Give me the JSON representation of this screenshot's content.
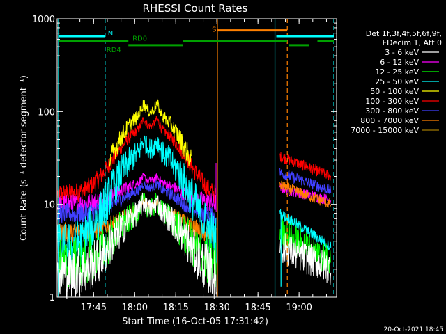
{
  "chart_data": {
    "type": "line",
    "title": "RHESSI Count Rates",
    "xlabel": "Start Time (16-Oct-05 17:31:42)",
    "ylabel": "Count Rate (s⁻¹ detector segment⁻¹)",
    "yscale": "log",
    "ylim": [
      1,
      1000
    ],
    "xlim_minutes": [
      0,
      102
    ],
    "y_ticks": [
      "1",
      "10",
      "100",
      "1000"
    ],
    "x_ticks": [
      {
        "label": "17:45",
        "t": 13.3
      },
      {
        "label": "18:00",
        "t": 28.3
      },
      {
        "label": "18:15",
        "t": 43.3
      },
      {
        "label": "18:30",
        "t": 58.3
      },
      {
        "label": "18:45",
        "t": 73.3
      },
      {
        "label": "19:00",
        "t": 88.3
      }
    ],
    "legend_header": [
      "Det 1f,3f,4f,5f,6f,9f,",
      "FDecim 1, Att 0"
    ],
    "series": [
      {
        "name": "3 - 6 keV",
        "color": "#ffffff",
        "pre": 1.8,
        "peak": 9,
        "pre_end": 1.5,
        "post_start": 3.5,
        "post_end": 2.0
      },
      {
        "name": "6 - 12 keV",
        "color": "#ff00ff",
        "pre": 10,
        "peak": 18,
        "pre_end": 10,
        "post_start": 15,
        "post_end": 11
      },
      {
        "name": "12 - 25 keV",
        "color": "#00ff00",
        "pre": 2.3,
        "peak": 9,
        "pre_end": 2.0,
        "post_start": 5,
        "post_end": 2.5
      },
      {
        "name": "25 - 50 keV",
        "color": "#00ffff",
        "pre": 3.3,
        "peak": 40,
        "pre_end": 3.0,
        "post_start": 8,
        "post_end": 3.5
      },
      {
        "name": "50 - 100 keV",
        "color": "#ffff00",
        "pre": 0,
        "peak": 100,
        "pre_end": 0,
        "post_start": 0,
        "post_end": 0
      },
      {
        "name": "100 - 300 keV",
        "color": "#ff0000",
        "pre": 13,
        "peak": 70,
        "pre_end": 11,
        "post_start": 33,
        "post_end": 20
      },
      {
        "name": "300 - 800 keV",
        "color": "#4040ff",
        "pre": 8,
        "peak": 15,
        "pre_end": 7,
        "post_start": 22,
        "post_end": 14
      },
      {
        "name": "800 - 7000 keV",
        "color": "#ff8000",
        "pre": 5,
        "peak": 9.5,
        "pre_end": 4.5,
        "post_start": 16,
        "post_end": 10
      },
      {
        "name": "7000 - 15000 keV",
        "color": "#a07800",
        "pre": 0,
        "peak": 0,
        "pre_end": 0,
        "post_start": 0,
        "post_end": 0
      }
    ],
    "peak_time_minutes": 34,
    "data_gap_minutes": [
      58.5,
      81
    ],
    "annotations": [
      {
        "label": "N",
        "color": "#00ffff"
      },
      {
        "label": "RD0",
        "color": "#00a000"
      },
      {
        "label": "RD4",
        "color": "#00a000"
      },
      {
        "label": "S",
        "color": "#ff8000"
      }
    ],
    "vertical_lines": [
      {
        "t": 0.5,
        "color": "#00ffff",
        "style": "solid"
      },
      {
        "t": 17.5,
        "color": "#00ffff",
        "style": "dashed"
      },
      {
        "t": 58.5,
        "color": "#ff8000",
        "style": "solid"
      },
      {
        "t": 79.5,
        "color": "#00ffff",
        "style": "solid"
      },
      {
        "t": 84,
        "color": "#ff8000",
        "style": "dashed"
      },
      {
        "t": 101,
        "color": "#00ffff",
        "style": "dashed"
      }
    ],
    "footer_date": "20-Oct-2021 18:45"
  }
}
